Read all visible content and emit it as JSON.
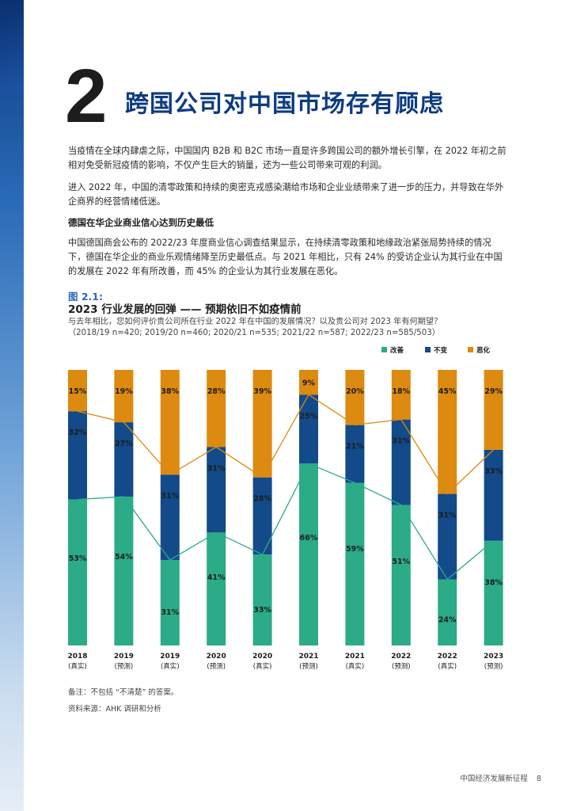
{
  "chapter": {
    "number": "2",
    "title": "跨国公司对中国市场存有顾虑"
  },
  "paragraphs": [
    "当疫情在全球内肆虐之际，中国国内 B2B 和 B2C 市场一直是许多跨国公司的额外增长引擎，在 2022 年初之前相对免受新冠疫情的影响，不仅产生巨大的销量，还为一些公司带来可观的利润。",
    "进入 2022 年，中国的清零政策和持续的奥密克戎感染潮给市场和企业业绩带来了进一步的压力，并导致在华外企商界的经营情绪低迷。",
    "中国德国商会公布的 2022/23 年度商业信心调查结果显示，在持续清零政策和地缘政治紧张局势持续的情况下，德国在华企业的商业乐观情绪降至历史最低点。与 2021 年相比，只有 24% 的受访企业认为其行业在中国的发展在 2022 年有所改善，而 45% 的企业认为其行业发展在恶化。"
  ],
  "subheading": "德国在华企业商业信心达到历史最低",
  "figure": {
    "label": "图 2.1:",
    "title": "2023 行业发展的回弹 —— 预期依旧不如疫情前",
    "subtitle_1": "与去年相比，您如何评价贵公司所在行业 2022 年在中国的发展情况？以及贵公司对 2023 年有何期望？",
    "subtitle_2": "（2018/19 n=420; 2019/20 n=460; 2020/21 n=535; 2021/22 n=587; 2022/23 n=585/503）"
  },
  "chart_data": {
    "type": "bar",
    "stacked": true,
    "normalized": true,
    "categories": [
      [
        "2018",
        "(真实)"
      ],
      [
        "2019",
        "(预测)"
      ],
      [
        "2019",
        "(真实)"
      ],
      [
        "2020",
        "(预测)"
      ],
      [
        "2020",
        "(真实)"
      ],
      [
        "2021",
        "(预测)"
      ],
      [
        "2021",
        "(真实)"
      ],
      [
        "2022",
        "(预测)"
      ],
      [
        "2022",
        "(真实)"
      ],
      [
        "2023",
        "(预测)"
      ]
    ],
    "series": [
      {
        "name": "改善",
        "color": "#2bab87",
        "values": [
          53,
          54,
          31,
          41,
          33,
          66,
          59,
          51,
          24,
          38
        ]
      },
      {
        "name": "不变",
        "color": "#124a8a",
        "values": [
          32,
          27,
          31,
          31,
          28,
          25,
          21,
          31,
          31,
          33
        ]
      },
      {
        "name": "恶化",
        "color": "#dd8a10",
        "values": [
          15,
          19,
          38,
          28,
          39,
          9,
          20,
          18,
          45,
          29
        ]
      }
    ],
    "connector_lines": true,
    "legend_position": "top-right",
    "grid": false
  },
  "notes": {
    "remark": "备注：不包括 “不清楚” 的答案。",
    "source": "资料来源：AHK 调研和分析"
  },
  "footer": {
    "text": "中国经济发展新征程",
    "page": "8"
  }
}
